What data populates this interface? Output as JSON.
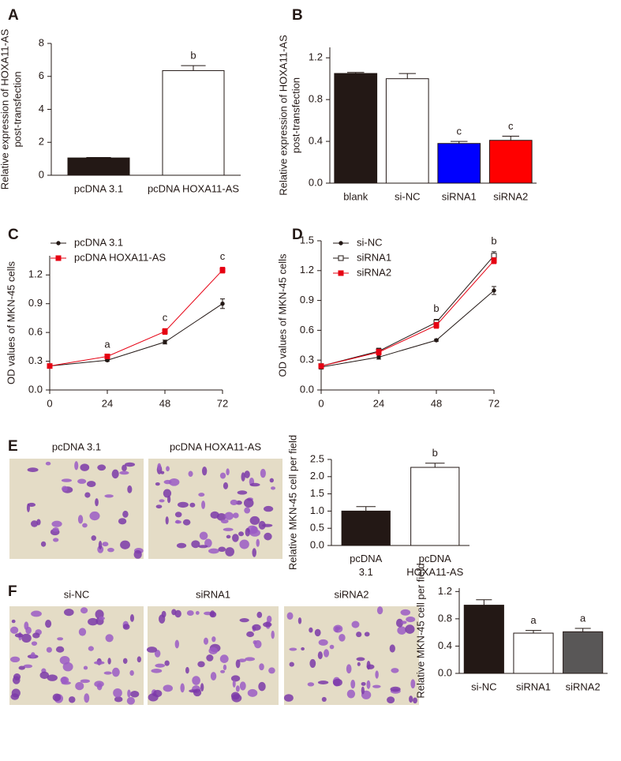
{
  "chart_data": [
    {
      "panel": "A",
      "type": "bar",
      "categories": [
        "pcDNA 3.1",
        "pcDNA HOXA11-AS"
      ],
      "values": [
        1.05,
        6.35
      ],
      "errors": [
        0.03,
        0.3
      ],
      "colors": [
        "#231815",
        "#ffffff"
      ],
      "sig_labels": [
        null,
        "b"
      ],
      "ylabel": [
        "Relative expression of HOXA11-AS",
        "post-transfection"
      ],
      "ylim": [
        0,
        8
      ],
      "yticks": [
        0,
        2,
        4,
        6,
        8
      ],
      "wrap_labels": false
    },
    {
      "panel": "B",
      "type": "bar",
      "categories": [
        "blank",
        "si-NC",
        "siRNA1",
        "siRNA2"
      ],
      "values": [
        1.05,
        1.0,
        0.38,
        0.41
      ],
      "errors": [
        0.01,
        0.05,
        0.02,
        0.04
      ],
      "colors": [
        "#231815",
        "#ffffff",
        "#0000ff",
        "#ff0000"
      ],
      "sig_labels": [
        null,
        null,
        "c",
        "c"
      ],
      "ylabel": [
        "Relative expression of HOXA11-AS",
        "post-transfection"
      ],
      "ylim": [
        0,
        1.3
      ],
      "yticks": [
        {
          "value": 0,
          "label": "0.0"
        },
        0.4,
        0.8,
        1.2
      ],
      "wrap_labels": false
    },
    {
      "panel": "C",
      "type": "line",
      "x": [
        0,
        24,
        48,
        72
      ],
      "xlim": [
        0,
        72
      ],
      "xticks": [
        0,
        24,
        48,
        72
      ],
      "series": [
        {
          "name": "pcDNA 3.1",
          "color": "#231815",
          "marker": "circle",
          "values": [
            0.25,
            0.31,
            0.5,
            0.9
          ],
          "errors": [
            0.01,
            0.01,
            0.02,
            0.05
          ]
        },
        {
          "name": "pcDNA HOXA11-AS",
          "color": "#e60012",
          "marker": "square",
          "values": [
            0.25,
            0.35,
            0.61,
            1.25
          ],
          "errors": [
            0.01,
            0.01,
            0.03,
            0.03
          ]
        }
      ],
      "sig_labels": [
        null,
        "a",
        "c",
        "c"
      ],
      "ylabel": [
        "OD values of MKN-45 cells"
      ],
      "ylim": [
        0,
        1.4
      ],
      "yticks": [
        {
          "value": 0,
          "label": "0.0"
        },
        0.3,
        0.6,
        0.9,
        1.2
      ],
      "legend": "top-left"
    },
    {
      "panel": "D",
      "type": "line",
      "x": [
        0,
        24,
        48,
        72
      ],
      "xlim": [
        0,
        72
      ],
      "xticks": [
        0,
        24,
        48,
        72
      ],
      "series": [
        {
          "name": "si-NC",
          "color": "#231815",
          "marker": "circle",
          "values": [
            0.23,
            0.33,
            0.5,
            1.0
          ],
          "errors": [
            0.02,
            0.02,
            0.01,
            0.04
          ]
        },
        {
          "name": "siRNA1",
          "color": "#ffffff",
          "marker": "square",
          "values": [
            0.24,
            0.39,
            0.68,
            1.35
          ],
          "errors": [
            0.02,
            0.03,
            0.03,
            0.04
          ]
        },
        {
          "name": "siRNA2",
          "color": "#e60012",
          "marker": "square",
          "values": [
            0.24,
            0.38,
            0.65,
            1.3
          ],
          "errors": [
            0.02,
            0.03,
            0.03,
            0.03
          ]
        }
      ],
      "sig_labels": [
        null,
        null,
        "b",
        "b"
      ],
      "ylabel": [
        "OD values of MKN-45 cells"
      ],
      "ylim": [
        0,
        1.5
      ],
      "yticks": [
        {
          "value": 0,
          "label": "0.0"
        },
        0.3,
        0.6,
        0.9,
        1.2,
        1.5
      ],
      "legend": "top-left"
    },
    {
      "panel": "E",
      "type": "bar",
      "micrograph_labels": [
        "pcDNA 3.1",
        "pcDNA HOXA11-AS"
      ],
      "categories": [
        "pcDNA 3.1",
        "pcDNA HOXA11-AS"
      ],
      "values": [
        1.0,
        2.27
      ],
      "errors": [
        0.13,
        0.12
      ],
      "colors": [
        "#231815",
        "#ffffff"
      ],
      "sig_labels": [
        null,
        "b"
      ],
      "ylabel": [
        "Relative MKN-45 cell per field"
      ],
      "ylim": [
        0,
        2.5
      ],
      "yticks": [
        {
          "value": 0,
          "label": "0.0"
        },
        {
          "value": 0.5,
          "label": "0.5"
        },
        {
          "value": 1,
          "label": "1.0"
        },
        {
          "value": 1.5,
          "label": "1.5"
        },
        {
          "value": 2,
          "label": "2.0"
        },
        {
          "value": 2.5,
          "label": "2.5"
        }
      ],
      "wrap_labels": true
    },
    {
      "panel": "F",
      "type": "bar",
      "micrograph_labels": [
        "si-NC",
        "siRNA1",
        "siRNA2"
      ],
      "categories": [
        "si-NC",
        "siRNA1",
        "siRNA2"
      ],
      "values": [
        1.0,
        0.59,
        0.61
      ],
      "errors": [
        0.08,
        0.04,
        0.05
      ],
      "colors": [
        "#231815",
        "#ffffff",
        "#595757"
      ],
      "sig_labels": [
        null,
        "a",
        "a"
      ],
      "ylabel": [
        "Relative MKN-45 cell per field"
      ],
      "ylim": [
        0,
        1.25
      ],
      "yticks": [
        {
          "value": 0,
          "label": "0.0"
        },
        0.4,
        0.8,
        1.2
      ],
      "wrap_labels": false
    }
  ]
}
